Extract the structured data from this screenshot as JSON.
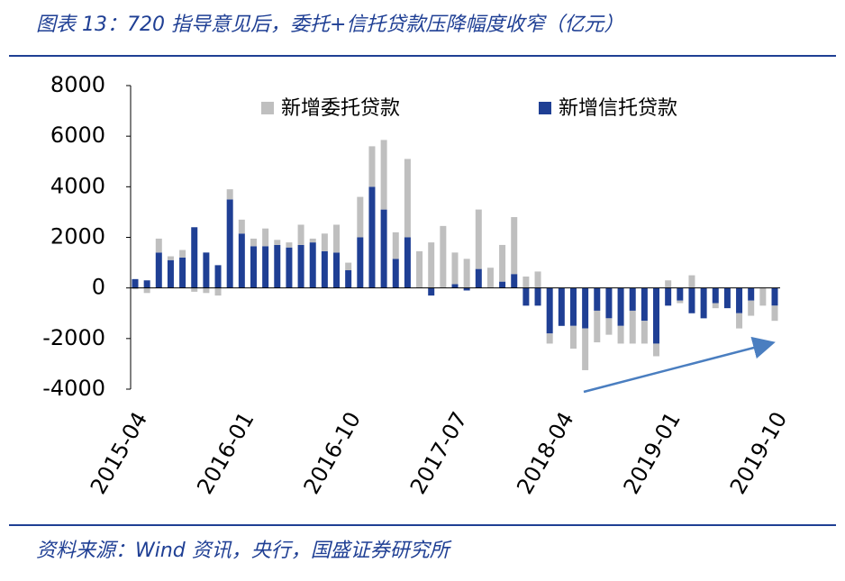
{
  "chart_data": {
    "type": "bar",
    "stacked": true,
    "title": "图表 13：720 指导意见后，委托+信托贷款压降幅度收窄（亿元）",
    "source": "资料来源：Wind 资讯，央行，国盛证券研究所",
    "categories": [
      "2015-04",
      null,
      null,
      null,
      null,
      null,
      null,
      null,
      null,
      "2016-01",
      null,
      null,
      null,
      null,
      null,
      null,
      null,
      null,
      "2016-10",
      null,
      null,
      null,
      null,
      null,
      null,
      null,
      null,
      "2017-07",
      null,
      null,
      null,
      null,
      null,
      null,
      null,
      null,
      "2018-04",
      null,
      null,
      null,
      null,
      null,
      null,
      null,
      null,
      "2019-01",
      null,
      null,
      null,
      null,
      null,
      null,
      null,
      null,
      "2019-10"
    ],
    "series": [
      {
        "name": "新增信托贷款",
        "color": "#1f3f94",
        "values": [
          350,
          300,
          1400,
          1100,
          1200,
          2400,
          1400,
          900,
          3500,
          2150,
          1650,
          1650,
          1700,
          1600,
          1700,
          1800,
          1450,
          1400,
          700,
          2000,
          4000,
          3100,
          1150,
          2000,
          0,
          -300,
          0,
          150,
          -100,
          750,
          0,
          250,
          550,
          -700,
          -700,
          -1800,
          -1500,
          -1500,
          -1600,
          -900,
          -1200,
          -1500,
          -900,
          -1300,
          -2200,
          -700,
          -500,
          -1000,
          -1200,
          -600,
          -800,
          -1000,
          -500,
          0,
          -700
        ]
      },
      {
        "name": "新增委托贷款",
        "color": "#bfbfbf",
        "values": [
          -50,
          -200,
          550,
          150,
          300,
          -150,
          -200,
          -300,
          400,
          550,
          300,
          700,
          200,
          200,
          800,
          150,
          700,
          1100,
          300,
          1600,
          1600,
          2750,
          1050,
          3100,
          1450,
          1800,
          2450,
          1250,
          1150,
          2350,
          800,
          1450,
          2250,
          450,
          650,
          -400,
          0,
          -900,
          -1650,
          -1250,
          -650,
          -700,
          -1300,
          -900,
          -500,
          300,
          -100,
          500,
          0,
          -200,
          0,
          -600,
          -600,
          -700,
          -600
        ]
      }
    ],
    "ylim": [
      -4000,
      8000
    ],
    "yticks": [
      -4000,
      -2000,
      0,
      2000,
      4000,
      6000,
      8000
    ]
  }
}
